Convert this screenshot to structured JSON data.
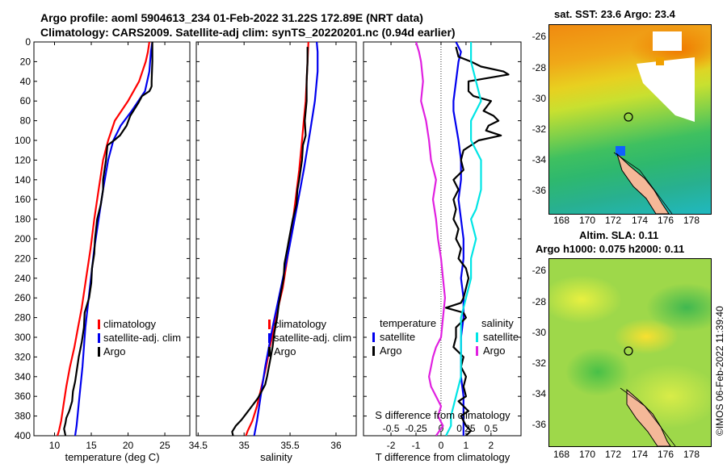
{
  "header": {
    "line1": "Argo profile: aoml 5904613_234 01-Feb-2022 31.22S 172.89E (NRT data)",
    "line2": "Climatology: CARS2009. Satellite-adj clim: synTS_20220201.nc (0.94d earlier)"
  },
  "colors": {
    "climatology": "#ff0000",
    "satellite": "#0000ee",
    "argo": "#000000",
    "sat_salinity": "#00e5e5",
    "argo_salinity_diff": "#e020e0"
  },
  "chart_data": [
    {
      "type": "line",
      "id": "temperature",
      "xlabel": "temperature (deg C)",
      "xlim": [
        7.2,
        28.4
      ],
      "xticks": [
        10,
        15,
        20,
        25
      ],
      "ylim": [
        0,
        400
      ],
      "yticks": [
        0,
        20,
        40,
        60,
        80,
        100,
        120,
        140,
        160,
        180,
        200,
        220,
        240,
        260,
        280,
        300,
        320,
        340,
        360,
        380,
        400
      ],
      "legend": [
        "climatology",
        "satellite-adj. clim",
        "Argo"
      ],
      "series": [
        {
          "name": "climatology",
          "color": "#ff0000",
          "x": [
            22.9,
            22.7,
            22.4,
            21.5,
            20.0,
            18.2,
            17.3,
            16.6,
            16.0,
            15.4,
            14.9,
            14.3,
            13.7,
            13.2,
            12.7,
            12.1,
            11.6,
            11.2,
            10.9,
            10.6,
            10.4
          ],
          "y": [
            0,
            10,
            20,
            40,
            60,
            80,
            100,
            120,
            150,
            180,
            210,
            240,
            270,
            290,
            310,
            330,
            350,
            370,
            385,
            395,
            400
          ]
        },
        {
          "name": "satellite-adj. clim",
          "color": "#0000ee",
          "x": [
            23.3,
            23.1,
            22.9,
            22.3,
            20.5,
            19.0,
            18.0,
            17.3,
            16.6,
            16.0,
            15.4,
            14.8,
            14.2,
            13.8,
            13.4,
            13.0,
            12.8
          ],
          "y": [
            0,
            10,
            30,
            50,
            70,
            85,
            100,
            120,
            150,
            180,
            210,
            250,
            290,
            330,
            360,
            390,
            400
          ]
        },
        {
          "name": "Argo",
          "color": "#000000",
          "x": [
            23.3,
            23.3,
            23.2,
            23.2,
            23.1,
            22.9,
            21.9,
            21.4,
            20.3,
            19.8,
            18.9,
            18.1,
            17.2,
            17.0,
            16.6,
            16.6,
            16.3,
            15.8,
            15.5,
            15.4,
            15.1,
            15.0,
            14.7,
            14.1,
            14.0,
            13.7,
            13.3,
            13.0,
            12.8,
            12.5,
            12.4,
            12.0,
            11.6,
            11.5,
            11.3,
            11.5
          ],
          "y": [
            0,
            20,
            40,
            45,
            47,
            50,
            55,
            62,
            75,
            85,
            95,
            100,
            105,
            120,
            140,
            150,
            165,
            180,
            200,
            215,
            230,
            245,
            260,
            275,
            290,
            305,
            320,
            335,
            345,
            355,
            365,
            375,
            382,
            387,
            393,
            400
          ]
        }
      ]
    },
    {
      "type": "line",
      "id": "salinity",
      "xlabel": "salinity",
      "xlim": [
        34.48,
        36.22
      ],
      "xticks": [
        34.5,
        35,
        35.5,
        36
      ],
      "xtick_labels": [
        "34.5",
        "35",
        "35.5",
        "36"
      ],
      "ylim": [
        0,
        400
      ],
      "legend": [
        "climatology",
        "satellite-adj. clim",
        "Argo"
      ],
      "series": [
        {
          "name": "climatology",
          "color": "#ff0000",
          "x": [
            35.7,
            35.69,
            35.68,
            35.67,
            35.65,
            35.63,
            35.6,
            35.56,
            35.52,
            35.47,
            35.42,
            35.37,
            35.33,
            35.28,
            35.24,
            35.19,
            35.14,
            35.09,
            35.04,
            35.02
          ],
          "y": [
            0,
            20,
            40,
            60,
            80,
            100,
            130,
            160,
            190,
            220,
            250,
            270,
            290,
            310,
            330,
            350,
            370,
            385,
            395,
            400
          ]
        },
        {
          "name": "satellite-adj. clim",
          "color": "#0000ee",
          "x": [
            35.79,
            35.8,
            35.8,
            35.77,
            35.72,
            35.65,
            35.57,
            35.49,
            35.4,
            35.31,
            35.23,
            35.18,
            35.14,
            35.11
          ],
          "y": [
            0,
            10,
            30,
            60,
            90,
            130,
            170,
            210,
            250,
            290,
            330,
            360,
            385,
            400
          ]
        },
        {
          "name": "Argo",
          "color": "#000000",
          "x": [
            35.69,
            35.69,
            35.68,
            35.68,
            35.66,
            35.67,
            35.64,
            35.63,
            35.6,
            35.58,
            35.57,
            35.53,
            35.49,
            35.47,
            35.44,
            35.43,
            35.41,
            35.38,
            35.36,
            35.33,
            35.31,
            35.29,
            35.27,
            35.25,
            35.23,
            35.19,
            35.15,
            35.1,
            35.06,
            35.02,
            34.97,
            34.91,
            34.87,
            34.88
          ],
          "y": [
            5,
            20,
            40,
            60,
            80,
            95,
            105,
            120,
            140,
            150,
            165,
            180,
            200,
            210,
            225,
            240,
            250,
            265,
            280,
            295,
            310,
            320,
            330,
            340,
            348,
            355,
            362,
            368,
            373,
            378,
            384,
            390,
            396,
            400
          ]
        }
      ]
    },
    {
      "type": "line",
      "id": "difference",
      "xlabel": "T difference from climatology",
      "xlabel_top": "S difference from climatology",
      "xlim": [
        -3.1,
        3.2
      ],
      "xticks": [
        -2,
        -1,
        0,
        1,
        2
      ],
      "xticks_s": [
        -0.5,
        -0.25,
        0,
        0.25,
        0.5
      ],
      "xtick_labels_s": [
        "-0.5",
        "-0.25",
        "0",
        "0.25",
        "0.5"
      ],
      "ylim": [
        0,
        400
      ],
      "legend_temperature": {
        "title": "temperature",
        "items": [
          "satellite",
          "Argo"
        ]
      },
      "legend_salinity": {
        "title": "salinity",
        "items": [
          "satellite",
          "Argo"
        ]
      },
      "series": [
        {
          "name": "T satellite",
          "color": "#0000ee",
          "x": [
            0.6,
            0.8,
            0.7,
            0.6,
            0.5,
            0.5,
            0.6,
            0.7,
            0.8,
            0.8,
            0.7,
            0.8,
            0.9,
            0.9,
            0.8,
            0.9,
            0.9,
            0.8,
            0.8,
            0.8,
            0.9,
            0.9,
            0.9,
            0.9,
            0.9,
            0.9
          ],
          "y": [
            0,
            10,
            20,
            40,
            60,
            70,
            85,
            100,
            120,
            140,
            160,
            180,
            200,
            220,
            240,
            260,
            280,
            300,
            320,
            340,
            360,
            370,
            380,
            390,
            395,
            400
          ]
        },
        {
          "name": "T Argo",
          "color": "#000000",
          "x": [
            0.6,
            0.7,
            1.2,
            1.6,
            2.5,
            2.7,
            1.1,
            1.1,
            1.3,
            2.0,
            1.7,
            2.1,
            2.3,
            1.9,
            1.8,
            2.4,
            1.5,
            0.9,
            0.8,
            0.9,
            0.5,
            0.7,
            0.5,
            0.6,
            0.5,
            0.7,
            0.6,
            0.8,
            0.7,
            1.0,
            1.1,
            1.0,
            0.9,
            0.8,
            0.2,
            0.9,
            1.0,
            0.6,
            0.6,
            0.5,
            0.9,
            0.8,
            1.0,
            0.9,
            1.0,
            0.7,
            0.9,
            1.1,
            0.8,
            1.0,
            1.2,
            1.0
          ],
          "y": [
            5,
            15,
            20,
            25,
            30,
            33,
            40,
            50,
            55,
            60,
            70,
            75,
            80,
            85,
            90,
            95,
            100,
            110,
            120,
            130,
            140,
            150,
            160,
            170,
            180,
            190,
            200,
            210,
            220,
            230,
            240,
            250,
            260,
            265,
            270,
            275,
            280,
            290,
            300,
            310,
            320,
            330,
            340,
            350,
            360,
            365,
            370,
            375,
            380,
            390,
            395,
            400
          ]
        },
        {
          "name": "S satellite",
          "color": "#00e5e5",
          "x": [
            0.3,
            0.3,
            0.35,
            0.4,
            0.3,
            0.3,
            0.4,
            0.4,
            0.35,
            0.3,
            0.35,
            0.3,
            0.3,
            0.25,
            0.2,
            0.2,
            0.2,
            0.2,
            0.15,
            0.1,
            0.1,
            0.05
          ],
          "y": [
            0,
            20,
            40,
            60,
            80,
            100,
            120,
            150,
            170,
            180,
            200,
            220,
            240,
            260,
            280,
            300,
            320,
            340,
            360,
            380,
            390,
            400
          ]
        },
        {
          "name": "S Argo",
          "color": "#e020e0",
          "x": [
            -0.25,
            -0.22,
            -0.2,
            -0.18,
            -0.2,
            -0.15,
            -0.12,
            -0.1,
            -0.05,
            -0.08,
            -0.05,
            -0.03,
            0.0,
            0.02,
            0.04,
            0.02,
            0.0,
            -0.05,
            -0.08,
            -0.1,
            -0.12,
            -0.1,
            -0.05,
            0.0,
            -0.03,
            0.02,
            -0.05
          ],
          "y": [
            0,
            10,
            20,
            40,
            60,
            80,
            100,
            120,
            140,
            160,
            180,
            200,
            220,
            240,
            260,
            280,
            300,
            310,
            320,
            330,
            340,
            350,
            360,
            370,
            380,
            390,
            400
          ]
        }
      ]
    }
  ],
  "maps": {
    "sst": {
      "title": "sat. SST: 23.6 Argo: 23.4",
      "yticks": [
        "-26",
        "-28",
        "-30",
        "-32",
        "-34",
        "-36"
      ],
      "xticks": [
        "168",
        "170",
        "172",
        "174",
        "176",
        "178"
      ]
    },
    "sla": {
      "title1": "Altim. SLA: 0.11",
      "title2": "Argo h1000: 0.075 h2000: 0.11",
      "yticks": [
        "-26",
        "-28",
        "-30",
        "-32",
        "-34",
        "-36"
      ],
      "xticks": [
        "168",
        "170",
        "172",
        "174",
        "176",
        "178"
      ]
    }
  },
  "credit": "©IMOS 06-Feb-2022 11:39:40"
}
